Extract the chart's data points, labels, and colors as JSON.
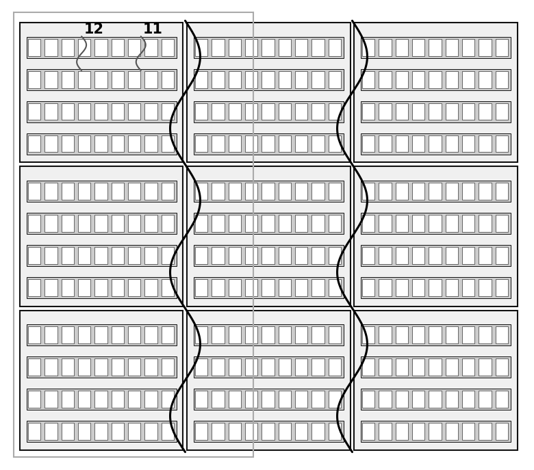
{
  "fig_width": 7.8,
  "fig_height": 6.87,
  "dpi": 100,
  "bg_color": "#ffffff",
  "border_color": "#999999",
  "border_lw": 1.5,
  "label_12": "12",
  "label_11": "11",
  "label_fontsize": 15,
  "unit_lw": 1.5,
  "led_lw": 0.7,
  "divider_color": "#000000",
  "divider_lw": 2.2,
  "n_cols": 3,
  "n_rows": 3,
  "n_led_rows": 4,
  "n_leds_per_row": 9
}
